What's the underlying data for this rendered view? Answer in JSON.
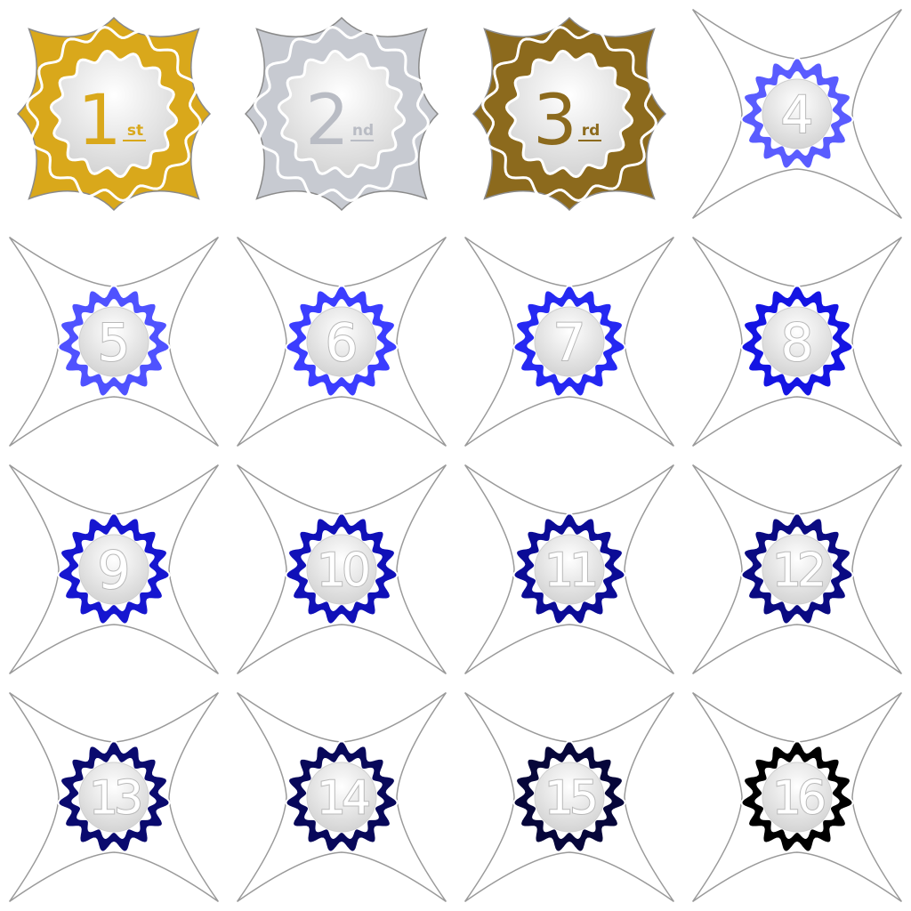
{
  "badges": [
    {
      "label": "1",
      "suffix": "st",
      "color": "#d9a81b",
      "text_color": "#d9a81b",
      "style": "medal"
    },
    {
      "label": "2",
      "suffix": "nd",
      "color": "#c7cad1",
      "text_color": "#b9bcc4",
      "style": "medal"
    },
    {
      "label": "3",
      "suffix": "rd",
      "color": "#8c6a1d",
      "text_color": "#8c6a1d",
      "style": "medal"
    },
    {
      "label": "4",
      "suffix": "",
      "color": "#5a5cff",
      "style": "rank"
    },
    {
      "label": "5",
      "suffix": "",
      "color": "#4f52ff",
      "style": "rank"
    },
    {
      "label": "6",
      "suffix": "",
      "color": "#3b3dff",
      "style": "rank"
    },
    {
      "label": "7",
      "suffix": "",
      "color": "#2528f2",
      "style": "rank"
    },
    {
      "label": "8",
      "suffix": "",
      "color": "#1414e3",
      "style": "rank"
    },
    {
      "label": "9",
      "suffix": "",
      "color": "#1616d0",
      "style": "rank"
    },
    {
      "label": "10",
      "suffix": "",
      "color": "#1010b8",
      "style": "rank"
    },
    {
      "label": "11",
      "suffix": "",
      "color": "#0b0b96",
      "style": "rank"
    },
    {
      "label": "12",
      "suffix": "",
      "color": "#0a0a82",
      "style": "rank"
    },
    {
      "label": "13",
      "suffix": "",
      "color": "#0a0a6e",
      "style": "rank"
    },
    {
      "label": "14",
      "suffix": "",
      "color": "#08085a",
      "style": "rank"
    },
    {
      "label": "15",
      "suffix": "",
      "color": "#06063a",
      "style": "rank"
    },
    {
      "label": "16",
      "suffix": "",
      "color": "#000000",
      "style": "rank"
    }
  ]
}
